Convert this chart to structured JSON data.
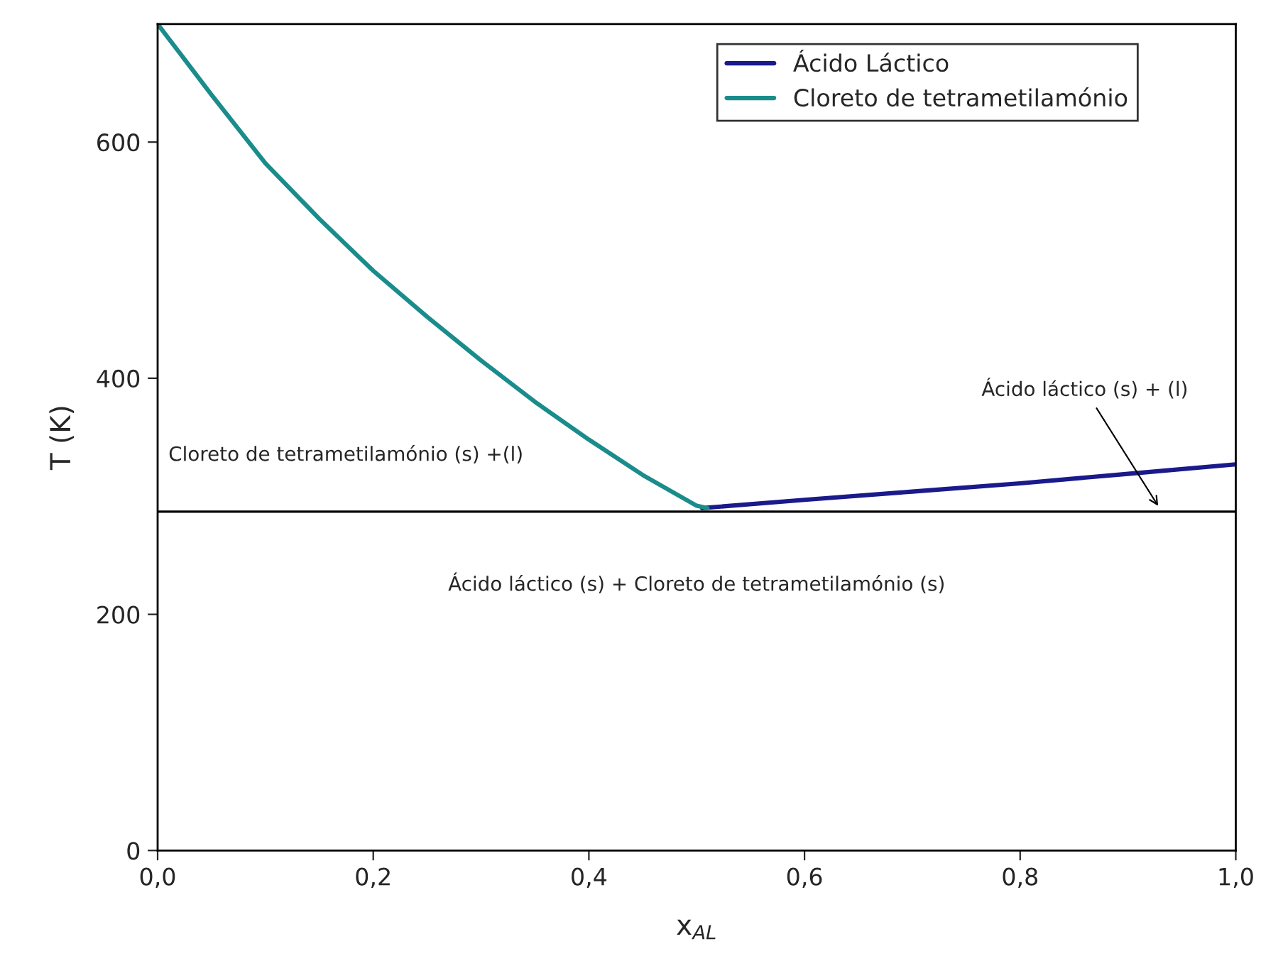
{
  "chart_data": {
    "type": "line",
    "xlabel": "x$_{AL}$",
    "ylabel": "T (K)",
    "xlim": [
      0,
      1
    ],
    "ylim": [
      0,
      700
    ],
    "xticks": [
      {
        "value": 0,
        "label": "0,0"
      },
      {
        "value": 0.2,
        "label": "0,2"
      },
      {
        "value": 0.4,
        "label": "0,4"
      },
      {
        "value": 0.6,
        "label": "0,6"
      },
      {
        "value": 0.8,
        "label": "0,8"
      },
      {
        "value": 1,
        "label": "1,0"
      }
    ],
    "yticks": [
      0,
      200,
      400,
      600
    ],
    "series": [
      {
        "name": "Ácido Láctico",
        "color": "#1a1a8c",
        "x": [
          0.505,
          0.6,
          0.7,
          0.8,
          0.9,
          1.0
        ],
        "values": [
          290,
          297,
          304,
          311,
          319,
          327
        ]
      },
      {
        "name": "Cloreto de tetrametilamónio",
        "color": "#1a8c8c",
        "x": [
          0,
          0.05,
          0.1,
          0.15,
          0.2,
          0.25,
          0.3,
          0.35,
          0.4,
          0.45,
          0.5,
          0.51
        ],
        "values": [
          700,
          640,
          582,
          535,
          491,
          452,
          415,
          380,
          348,
          318,
          292,
          290
        ]
      }
    ],
    "ref_lines": [
      {
        "axis": "y",
        "value": 287,
        "color": "#000000",
        "line_style": "solid"
      }
    ],
    "annotations": [
      {
        "text": "Ácido láctico (s) + (l)",
        "x": 0.93,
        "y": 289
      },
      "Cloreto de tetrametilamónio (s) +(l)",
      "Ácido láctico (s) + Cloreto de tetrametilamónio (s)"
    ],
    "legend": "top right",
    "grid": false,
    "marker": "none",
    "line_style": "solid"
  }
}
